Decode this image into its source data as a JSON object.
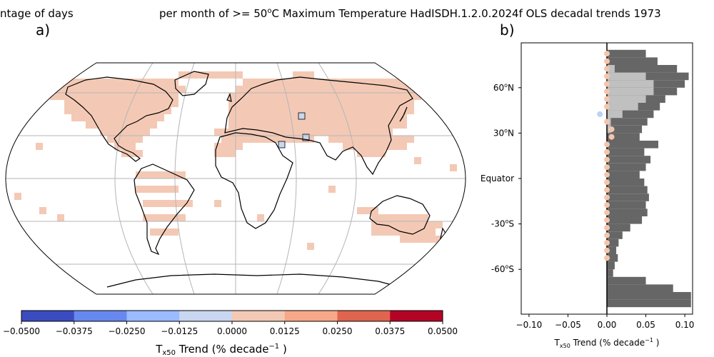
{
  "title_left": "ntage of days",
  "title_right_pre": "per month of >= 50",
  "title_right_sup": "o",
  "title_right_post": "C Maximum Temperature HadISDH.1.2.0.2024f OLS decadal trends 1973",
  "panel_a_label": "a)",
  "panel_b_label": "b)",
  "chart_data": [
    {
      "type": "heatmap",
      "subtype": "map (Robinson projection)",
      "panel": "a)",
      "colorbar": {
        "label_main": "T",
        "label_sub": "x50",
        "label_rest": " Trend (% decade",
        "label_sup": "−1",
        "label_end": " )",
        "ticks": [
          "−0.0500",
          "−0.0375",
          "−0.0250",
          "−0.0125",
          "0.0000",
          "0.0125",
          "0.0250",
          "0.0375",
          "0.0500"
        ],
        "colors": [
          "#3b4cc0",
          "#6788ee",
          "#9abbff",
          "#c9d7f0",
          "#f3c9b5",
          "#f7a889",
          "#e0654f",
          "#b40426"
        ],
        "range": [
          -0.05,
          0.05
        ]
      },
      "cells_note": "Grid boxes are dominated by the 0.0000 to 0.0125 class; a few boxes in the Middle East fall in the -0.0125 to 0.0000 class."
    },
    {
      "type": "bar",
      "orientation": "horizontal",
      "panel": "b)",
      "xlim": [
        -0.11,
        0.11
      ],
      "x_ticks": [
        "−0.10",
        "−0.05",
        "0.00",
        "0.05",
        "0.10"
      ],
      "xlabel_main": "T",
      "xlabel_sub": "x50",
      "xlabel_rest": " Trend (% decade",
      "xlabel_sup": "−1",
      "xlabel_end": " )",
      "y_ticks": [
        {
          "label": "60",
          "sup": "o",
          "suffix": "N"
        },
        {
          "label": "30",
          "sup": "o",
          "suffix": "N"
        },
        {
          "label": "Equator",
          "sup": "",
          "suffix": ""
        },
        {
          "label": "-30",
          "sup": "o",
          "suffix": "S"
        },
        {
          "label": "-60",
          "sup": "o",
          "suffix": "S"
        }
      ],
      "latitudes": [
        82.5,
        77.5,
        72.5,
        67.5,
        62.5,
        57.5,
        52.5,
        47.5,
        42.5,
        37.5,
        32.5,
        27.5,
        22.5,
        17.5,
        12.5,
        7.5,
        2.5,
        -2.5,
        -7.5,
        -12.5,
        -17.5,
        -22.5,
        -27.5,
        -32.5,
        -37.5,
        -42.5,
        -47.5,
        -52.5,
        -57.5,
        -62.5,
        -67.5,
        -72.5,
        -77.5,
        -82.5
      ],
      "land_fraction": [
        0.05,
        0.065,
        0.09,
        0.105,
        0.1,
        0.09,
        0.075,
        0.068,
        0.06,
        0.052,
        0.045,
        0.042,
        0.066,
        0.048,
        0.056,
        0.05,
        0.042,
        0.048,
        0.052,
        0.054,
        0.05,
        0.052,
        0.045,
        0.03,
        0.02,
        0.015,
        0.012,
        0.014,
        0.01,
        0.008,
        0.05,
        0.085,
        0.108,
        0.108
      ],
      "observed_fraction": [
        0.0,
        0.0,
        0.01,
        0.05,
        0.06,
        0.06,
        0.05,
        0.04,
        0.02,
        0.005,
        0.005,
        0.0,
        0.0,
        0.0,
        0.0,
        0.0,
        0.0,
        0.0,
        0.0,
        0.0,
        0.0,
        0.0,
        0.0,
        0.0,
        0.0,
        0.0,
        0.0,
        0.0,
        0.0,
        0.0,
        0.0,
        0.0,
        0.0,
        0.0
      ],
      "zonal_trend_points": [
        {
          "lat": 82.5,
          "value": 0.0
        },
        {
          "lat": 77.5,
          "value": 0.0
        },
        {
          "lat": 72.5,
          "value": 0.0
        },
        {
          "lat": 67.5,
          "value": 0.0
        },
        {
          "lat": 62.5,
          "value": 0.0
        },
        {
          "lat": 57.5,
          "value": 0.0
        },
        {
          "lat": 52.5,
          "value": 0.0
        },
        {
          "lat": 47.5,
          "value": 0.0
        },
        {
          "lat": 42.5,
          "value": -0.009
        },
        {
          "lat": 37.5,
          "value": 0.0
        },
        {
          "lat": 32.5,
          "value": 0.006
        },
        {
          "lat": 27.5,
          "value": 0.006
        },
        {
          "lat": 22.5,
          "value": 0.0
        },
        {
          "lat": 17.5,
          "value": 0.0
        },
        {
          "lat": 12.5,
          "value": 0.0
        },
        {
          "lat": 7.5,
          "value": 0.0
        },
        {
          "lat": 2.5,
          "value": 0.0
        },
        {
          "lat": -2.5,
          "value": 0.0
        },
        {
          "lat": -7.5,
          "value": 0.0
        },
        {
          "lat": -12.5,
          "value": 0.0
        },
        {
          "lat": -17.5,
          "value": 0.0
        },
        {
          "lat": -22.5,
          "value": 0.0
        },
        {
          "lat": -27.5,
          "value": 0.0
        },
        {
          "lat": -32.5,
          "value": 0.0
        },
        {
          "lat": -37.5,
          "value": 0.0
        },
        {
          "lat": -42.5,
          "value": 0.0
        },
        {
          "lat": -47.5,
          "value": 0.0
        },
        {
          "lat": -52.5,
          "value": 0.0
        }
      ],
      "colors": {
        "land_bar": "#666666",
        "observed_bar": "#c0c0c0",
        "zero_point": "#f4c6ad",
        "negative_point": "#bdd2f6"
      }
    }
  ]
}
